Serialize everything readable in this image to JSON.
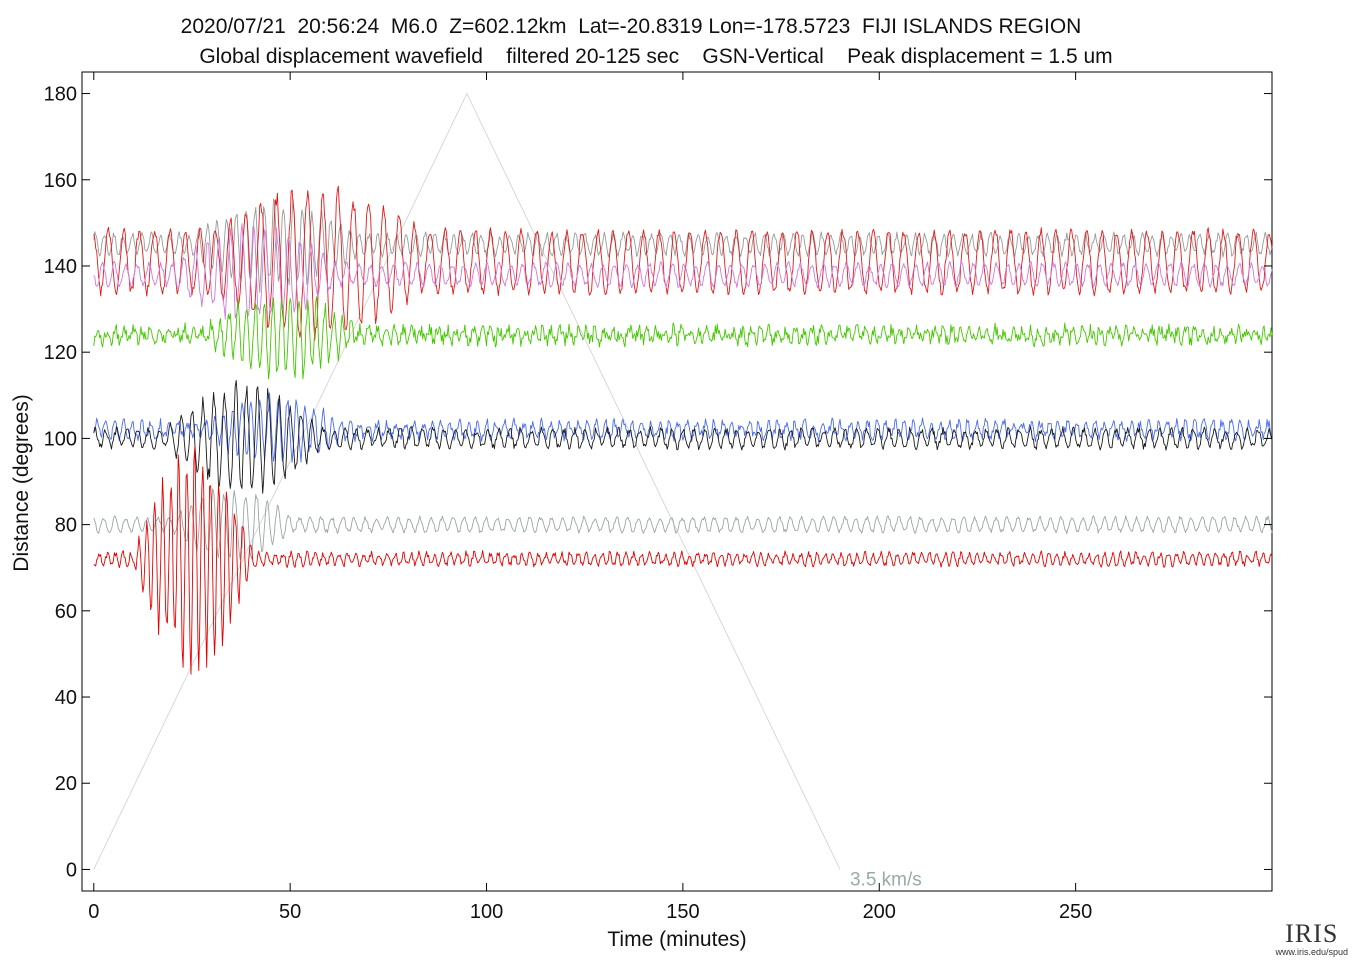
{
  "header": {
    "line1": "2020/07/21  20:56:24  M6.0  Z=602.12km  Lat=-20.8319 Lon=-178.5723  FIJI ISLANDS REGION",
    "line2": "Global displacement wavefield    filtered 20-125 sec    GSN-Vertical    Peak displacement = 1.5 um"
  },
  "chart_data": {
    "type": "line",
    "xlabel": "Time (minutes)",
    "ylabel": "Distance (degrees)",
    "xlim": [
      -3,
      300
    ],
    "ylim": [
      -5,
      185
    ],
    "xticks": [
      0,
      50,
      100,
      150,
      200,
      250
    ],
    "yticks": [
      0,
      20,
      40,
      60,
      80,
      100,
      120,
      140,
      160,
      180
    ],
    "grid": false,
    "reference_line": {
      "label": "3.5 km/s",
      "color": "#d8d8d8",
      "label_color": "#9aaaa8",
      "points": [
        [
          0,
          0
        ],
        [
          95,
          180
        ],
        [
          190,
          0
        ]
      ]
    },
    "traces": [
      {
        "distance": 145,
        "color": "#9a9a9a",
        "start": 0,
        "end": 300,
        "burst_start": 25,
        "burst_end": 80,
        "burst_amp": 9,
        "base_amp": 2.2,
        "noise": 0.8,
        "period": 2.6
      },
      {
        "distance": 141,
        "color": "#e81818",
        "start": 0,
        "end": 300,
        "burst_start": 30,
        "burst_end": 100,
        "burst_amp": 12,
        "base_amp": 7,
        "noise": 1.0,
        "period": 4.2
      },
      {
        "distance": 138,
        "color": "#d07ad8",
        "start": 0,
        "end": 300,
        "burst_start": 20,
        "burst_end": 75,
        "burst_amp": 10,
        "base_amp": 2.4,
        "noise": 0.7,
        "period": 3.2
      },
      {
        "distance": 124,
        "color": "#44c800",
        "start": 0,
        "end": 300,
        "burst_start": 28,
        "burst_end": 80,
        "burst_amp": 9,
        "base_amp": 1.3,
        "noise": 1.6,
        "period": 2.4
      },
      {
        "distance": 102,
        "color": "#4a6cf0",
        "start": 0,
        "end": 300,
        "burst_start": 28,
        "burst_end": 75,
        "burst_amp": 7,
        "base_amp": 1.6,
        "noise": 1.2,
        "period": 2.5
      },
      {
        "distance": 100,
        "color": "#1a1a1a",
        "start": 0,
        "end": 300,
        "burst_start": 18,
        "burst_end": 70,
        "burst_amp": 12,
        "base_amp": 2.0,
        "noise": 0.8,
        "period": 3.0
      },
      {
        "distance": 80,
        "color": "#9aa6a6",
        "start": 0,
        "end": 300,
        "burst_start": 20,
        "burst_end": 60,
        "burst_amp": 8,
        "base_amp": 1.6,
        "noise": 0.5,
        "period": 3.0
      },
      {
        "distance": 72,
        "color": "#e80000",
        "start": 0,
        "end": 300,
        "burst_start": 10,
        "burst_end": 50,
        "burst_amp": 28,
        "base_amp": 1.3,
        "noise": 0.7,
        "period": 2.2
      }
    ]
  },
  "logo": {
    "text": "IRIS",
    "url": "www.iris.edu/spud"
  }
}
